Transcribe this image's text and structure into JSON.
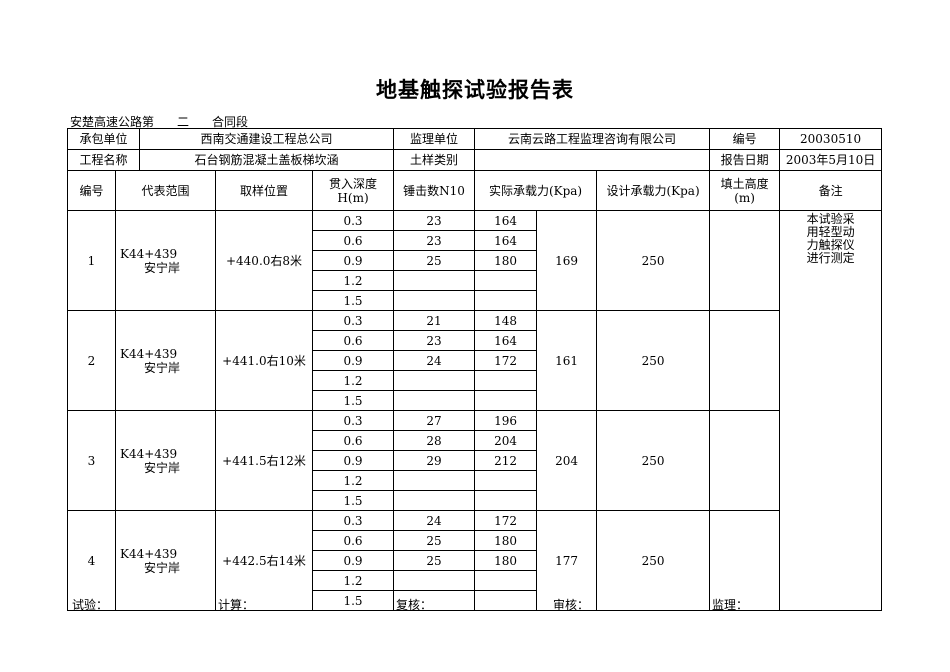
{
  "title": "地基触探试验报告表",
  "subtitle": {
    "prefix": "安楚高速公路第",
    "section": "二",
    "suffix": "合同段"
  },
  "header": {
    "contractor_label": "承包单位",
    "contractor": "西南交通建设工程总公司",
    "supervisor_label": "监理单位",
    "supervisor": "云南云路工程监理咨询有限公司",
    "number_label": "编号",
    "number": "20030510",
    "project_label": "工程名称",
    "project": "石台钢筋混凝土盖板梯坎涵",
    "soil_label": "土样类别",
    "soil": "",
    "date_label": "报告日期",
    "date": "2003年5月10日"
  },
  "columns": {
    "no": "编号",
    "range": "代表范围",
    "position": "取样位置",
    "depth": "贯入深度H(m)",
    "blows": "锤击数N10",
    "actual": "实际承载力(Kpa)",
    "design": "设计承载力(Kpa)",
    "fill": "填土高度(m)",
    "note": "备注"
  },
  "note": "本试验采用轻型动力触探仪进行测定",
  "groups": [
    {
      "no": "1",
      "range1": "K44+439",
      "range2": "安宁岸",
      "position": "+440.0右8米",
      "avg": "169",
      "design": "250",
      "fill": "",
      "rows": [
        {
          "d": "0.3",
          "n": "23",
          "k": "164"
        },
        {
          "d": "0.6",
          "n": "23",
          "k": "164"
        },
        {
          "d": "0.9",
          "n": "25",
          "k": "180"
        },
        {
          "d": "1.2",
          "n": "",
          "k": ""
        },
        {
          "d": "1.5",
          "n": "",
          "k": ""
        }
      ]
    },
    {
      "no": "2",
      "range1": "K44+439",
      "range2": "安宁岸",
      "position": "+441.0右10米",
      "avg": "161",
      "design": "250",
      "fill": "",
      "rows": [
        {
          "d": "0.3",
          "n": "21",
          "k": "148"
        },
        {
          "d": "0.6",
          "n": "23",
          "k": "164"
        },
        {
          "d": "0.9",
          "n": "24",
          "k": "172"
        },
        {
          "d": "1.2",
          "n": "",
          "k": ""
        },
        {
          "d": "1.5",
          "n": "",
          "k": ""
        }
      ]
    },
    {
      "no": "3",
      "range1": "K44+439",
      "range2": "安宁岸",
      "position": "+441.5右12米",
      "avg": "204",
      "design": "250",
      "fill": "",
      "rows": [
        {
          "d": "0.3",
          "n": "27",
          "k": "196"
        },
        {
          "d": "0.6",
          "n": "28",
          "k": "204"
        },
        {
          "d": "0.9",
          "n": "29",
          "k": "212"
        },
        {
          "d": "1.2",
          "n": "",
          "k": ""
        },
        {
          "d": "1.5",
          "n": "",
          "k": ""
        }
      ]
    },
    {
      "no": "4",
      "range1": "K44+439",
      "range2": "安宁岸",
      "position": "+442.5右14米",
      "avg": "177",
      "design": "250",
      "fill": "",
      "rows": [
        {
          "d": "0.3",
          "n": "24",
          "k": "172"
        },
        {
          "d": "0.6",
          "n": "25",
          "k": "180"
        },
        {
          "d": "0.9",
          "n": "25",
          "k": "180"
        },
        {
          "d": "1.2",
          "n": "",
          "k": ""
        },
        {
          "d": "1.5",
          "n": "",
          "k": ""
        }
      ]
    }
  ],
  "footer": {
    "test": "试验：",
    "calc": "计算：",
    "review": "复核：",
    "audit": "审核：",
    "supervise": "监理："
  }
}
